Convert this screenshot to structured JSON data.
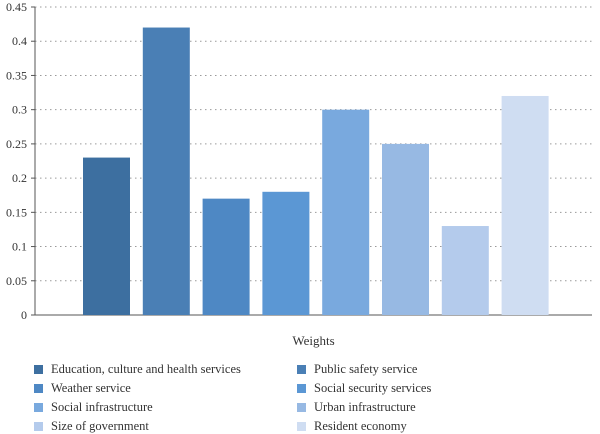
{
  "chart_data": {
    "type": "bar",
    "xlabel": "Weights",
    "ylim": [
      0,
      0.45
    ],
    "yticks": [
      "0",
      "0.05",
      "0.1",
      "0.15",
      "0.2",
      "0.25",
      "0.3",
      "0.35",
      "0.4",
      "0.45"
    ],
    "grid": true,
    "legend_position": "bottom",
    "series": [
      {
        "name": "Education, culture and health services",
        "value": 0.23,
        "color": "#3d6fa0"
      },
      {
        "name": "Public safety service",
        "value": 0.42,
        "color": "#4a7fb5"
      },
      {
        "name": "Weather service",
        "value": 0.17,
        "color": "#4e88c4"
      },
      {
        "name": "Social security services",
        "value": 0.18,
        "color": "#5b97d4"
      },
      {
        "name": "Social infrastructure",
        "value": 0.3,
        "color": "#79a9de"
      },
      {
        "name": "Urban infrastructure",
        "value": 0.25,
        "color": "#97b9e3"
      },
      {
        "name": "Size of government",
        "value": 0.13,
        "color": "#b4cbec"
      },
      {
        "name": "Resident economy",
        "value": 0.32,
        "color": "#cfddf2"
      }
    ]
  }
}
